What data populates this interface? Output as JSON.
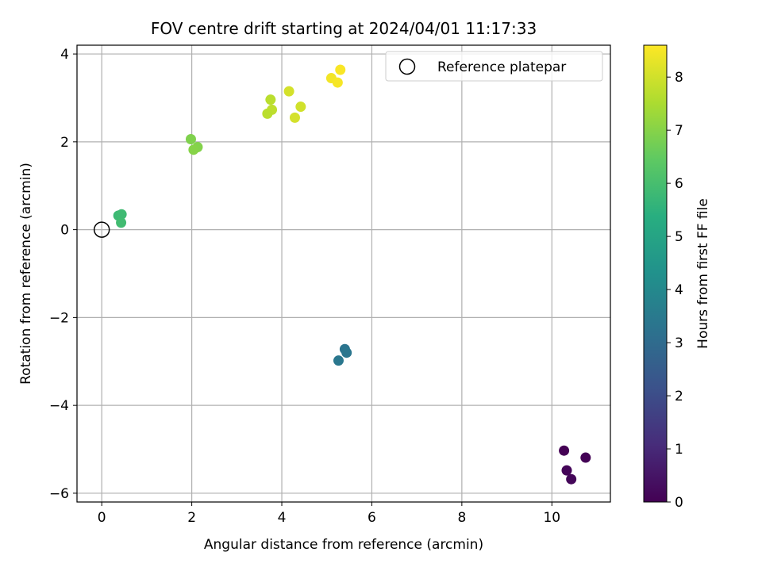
{
  "chart_data": {
    "type": "scatter",
    "title": "FOV centre drift starting at 2024/04/01 11:17:33",
    "xlabel": "Angular distance from reference (arcmin)",
    "ylabel": "Rotation from reference (arcmin)",
    "xlim": [
      -0.55,
      11.3
    ],
    "ylim": [
      -6.2,
      4.2
    ],
    "xticks": [
      0,
      2,
      4,
      6,
      8,
      10
    ],
    "yticks": [
      -6,
      -4,
      -2,
      0,
      2,
      4
    ],
    "xtick_labels": [
      "0",
      "2",
      "4",
      "6",
      "8",
      "10"
    ],
    "ytick_labels": [
      "−6",
      "−4",
      "−2",
      "0",
      "2",
      "4"
    ],
    "grid": true,
    "colorbar": {
      "label": "Hours from first FF file",
      "range": [
        0,
        8.6
      ],
      "ticks": [
        0,
        1,
        2,
        3,
        4,
        5,
        6,
        7,
        8
      ],
      "tick_labels": [
        "0",
        "1",
        "2",
        "3",
        "4",
        "5",
        "6",
        "7",
        "8"
      ],
      "colormap": "viridis"
    },
    "legend": {
      "location": "top-right",
      "entries": [
        {
          "label": "Reference platepar",
          "marker": "open-circle"
        }
      ]
    },
    "reference_point": {
      "x": 0,
      "y": 0
    },
    "points": [
      {
        "x": 10.27,
        "y": -5.03,
        "hours": 0.0
      },
      {
        "x": 10.75,
        "y": -5.19,
        "hours": 0.05
      },
      {
        "x": 10.33,
        "y": -5.48,
        "hours": 0.1
      },
      {
        "x": 10.43,
        "y": -5.68,
        "hours": 0.15
      },
      {
        "x": 5.4,
        "y": -2.72,
        "hours": 3.3
      },
      {
        "x": 5.44,
        "y": -2.8,
        "hours": 3.35
      },
      {
        "x": 5.26,
        "y": -2.98,
        "hours": 3.4
      },
      {
        "x": 0.37,
        "y": 0.32,
        "hours": 5.8
      },
      {
        "x": 0.44,
        "y": 0.35,
        "hours": 5.85
      },
      {
        "x": 0.43,
        "y": 0.16,
        "hours": 5.9
      },
      {
        "x": 1.98,
        "y": 2.06,
        "hours": 6.9
      },
      {
        "x": 2.13,
        "y": 1.88,
        "hours": 6.95
      },
      {
        "x": 2.04,
        "y": 1.82,
        "hours": 7.0
      },
      {
        "x": 3.75,
        "y": 2.96,
        "hours": 7.7
      },
      {
        "x": 3.78,
        "y": 2.73,
        "hours": 7.75
      },
      {
        "x": 3.68,
        "y": 2.64,
        "hours": 7.7
      },
      {
        "x": 4.42,
        "y": 2.8,
        "hours": 8.0
      },
      {
        "x": 4.29,
        "y": 2.55,
        "hours": 8.05
      },
      {
        "x": 4.16,
        "y": 3.15,
        "hours": 8.05
      },
      {
        "x": 5.1,
        "y": 3.45,
        "hours": 8.45
      },
      {
        "x": 5.3,
        "y": 3.64,
        "hours": 8.55
      },
      {
        "x": 5.24,
        "y": 3.35,
        "hours": 8.5
      }
    ]
  }
}
